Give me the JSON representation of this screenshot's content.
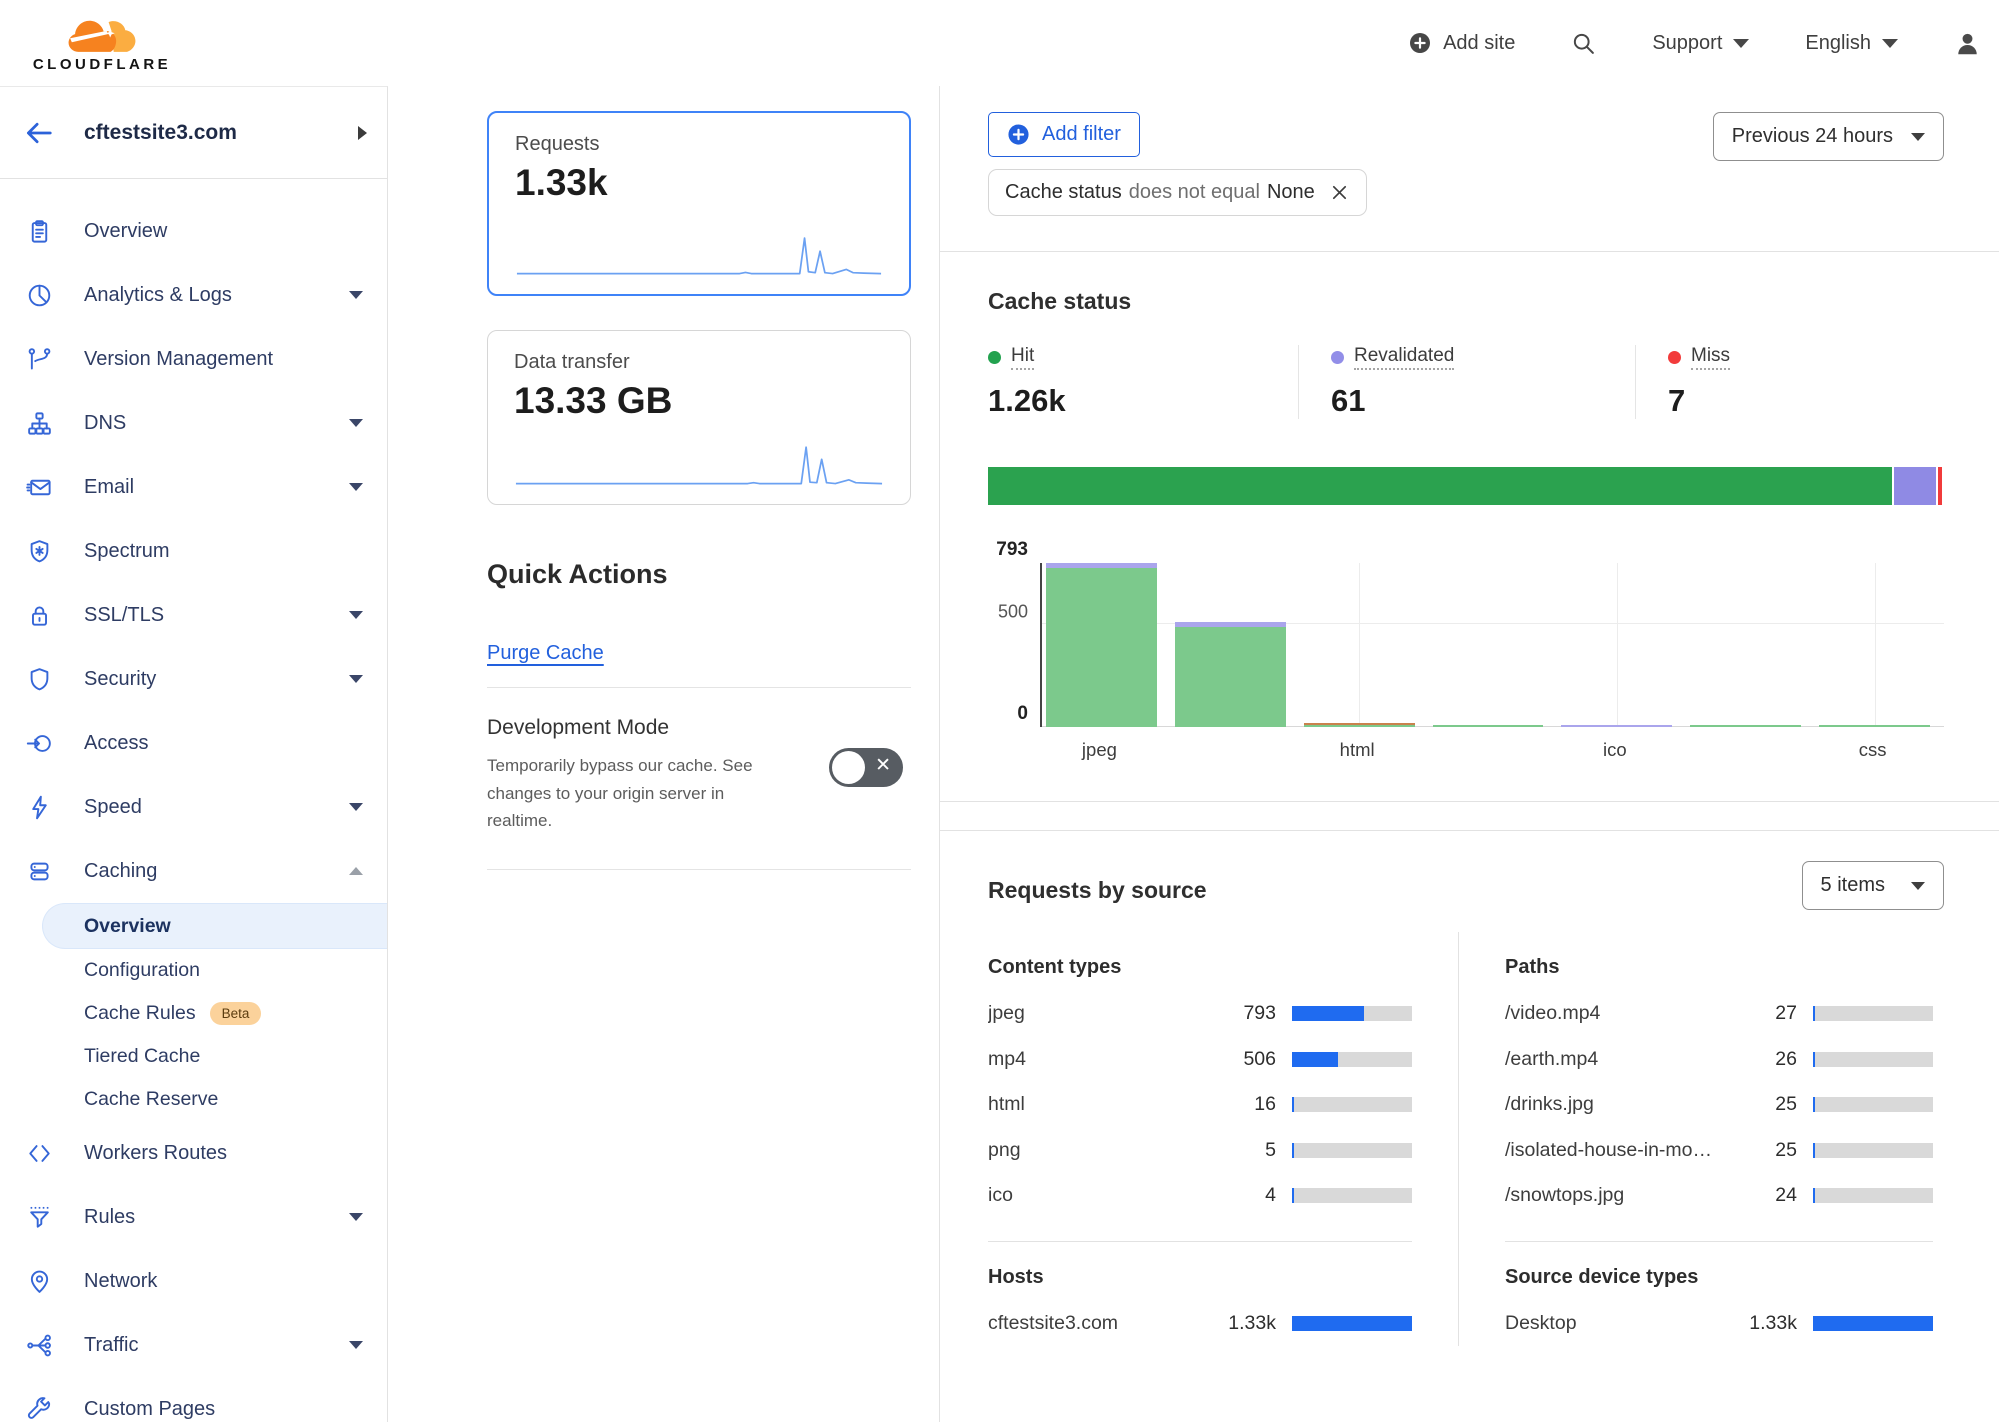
{
  "header": {
    "logo_text": "CLOUDFLARE",
    "add_site_label": "Add site",
    "support_label": "Support",
    "language_label": "English"
  },
  "sidebar": {
    "site_name": "cftestsite3.com",
    "items": [
      {
        "label": "Overview",
        "icon": "clipboard"
      },
      {
        "label": "Analytics & Logs",
        "icon": "pie",
        "caret": true
      },
      {
        "label": "Version Management",
        "icon": "branch"
      },
      {
        "label": "DNS",
        "icon": "tree",
        "caret": true
      },
      {
        "label": "Email",
        "icon": "envelope",
        "caret": true
      },
      {
        "label": "Spectrum",
        "icon": "shield-burst"
      },
      {
        "label": "SSL/TLS",
        "icon": "lock",
        "caret": true
      },
      {
        "label": "Security",
        "icon": "shield",
        "caret": true
      },
      {
        "label": "Access",
        "icon": "access"
      },
      {
        "label": "Speed",
        "icon": "bolt",
        "caret": true
      },
      {
        "label": "Caching",
        "icon": "layers",
        "expanded": true,
        "children": [
          {
            "label": "Overview",
            "selected": true
          },
          {
            "label": "Configuration"
          },
          {
            "label": "Cache Rules",
            "badge": "Beta"
          },
          {
            "label": "Tiered Cache"
          },
          {
            "label": "Cache Reserve"
          }
        ]
      },
      {
        "label": "Workers Routes",
        "icon": "code"
      },
      {
        "label": "Rules",
        "icon": "funnel",
        "caret": true
      },
      {
        "label": "Network",
        "icon": "pin"
      },
      {
        "label": "Traffic",
        "icon": "share",
        "caret": true
      },
      {
        "label": "Custom Pages",
        "icon": "wrench"
      }
    ]
  },
  "metrics": {
    "requests": {
      "label": "Requests",
      "value": "1.33k"
    },
    "data_transfer": {
      "label": "Data transfer",
      "value": "13.33 GB"
    }
  },
  "quick_actions": {
    "title": "Quick Actions",
    "purge_cache_label": "Purge Cache",
    "dev_mode": {
      "title": "Development Mode",
      "description": "Temporarily bypass our cache. See changes to your origin server in realtime.",
      "enabled": false
    }
  },
  "filters": {
    "add_filter_label": "Add filter",
    "chip": {
      "field": "Cache status",
      "operator": "does not equal",
      "value": "None"
    },
    "time_range_label": "Previous 24 hours"
  },
  "cache_status": {
    "title": "Cache status",
    "stats": [
      {
        "label": "Hit",
        "value": "1.26k",
        "color": "#23a24f"
      },
      {
        "label": "Revalidated",
        "value": "61",
        "color": "#928ee8"
      },
      {
        "label": "Miss",
        "value": "7",
        "color": "#f23b3b"
      }
    ]
  },
  "requests_by_source": {
    "title": "Requests by source",
    "items_dropdown_label": "5 items",
    "total": 1330,
    "groups": [
      {
        "title": "Content types",
        "rows": [
          {
            "label": "jpeg",
            "display": "793",
            "value": 793
          },
          {
            "label": "mp4",
            "display": "506",
            "value": 506
          },
          {
            "label": "html",
            "display": "16",
            "value": 16
          },
          {
            "label": "png",
            "display": "5",
            "value": 5
          },
          {
            "label": "ico",
            "display": "4",
            "value": 4
          }
        ]
      },
      {
        "title": "Paths",
        "rows": [
          {
            "label": "/video.mp4",
            "display": "27",
            "value": 27
          },
          {
            "label": "/earth.mp4",
            "display": "26",
            "value": 26
          },
          {
            "label": "/drinks.jpg",
            "display": "25",
            "value": 25
          },
          {
            "label": "/isolated-house-in-mo…",
            "display": "25",
            "value": 25
          },
          {
            "label": "/snowtops.jpg",
            "display": "24",
            "value": 24
          }
        ]
      },
      {
        "title": "Hosts",
        "rows": [
          {
            "label": "cftestsite3.com",
            "display": "1.33k",
            "value": 1330
          }
        ]
      },
      {
        "title": "Source device types",
        "rows": [
          {
            "label": "Desktop",
            "display": "1.33k",
            "value": 1330
          }
        ]
      }
    ]
  },
  "chart_data": [
    {
      "type": "bar",
      "variant": "stacked-horizontal-100pct",
      "title": "Cache status",
      "total": 1330,
      "segments": [
        {
          "name": "Hit",
          "value": 1260,
          "color": "#2ba24f"
        },
        {
          "name": "Revalidated",
          "value": 61,
          "color": "#8f8ae4"
        },
        {
          "name": "Miss",
          "value": 7,
          "color": "#f13b3b"
        }
      ]
    },
    {
      "type": "bar",
      "stacked": true,
      "categories": [
        "jpeg",
        "mp4",
        "html",
        "png",
        "ico",
        "",
        "css"
      ],
      "x_tick_labels": [
        {
          "label": "jpeg",
          "slot": 0
        },
        {
          "label": "html",
          "slot": 2
        },
        {
          "label": "ico",
          "slot": 4
        },
        {
          "label": "css",
          "slot": 6
        }
      ],
      "grid_slots": [
        2,
        4,
        6
      ],
      "y_ticks": [
        {
          "label": "793",
          "value": 793,
          "strong": true
        },
        {
          "label": "500",
          "value": 500
        },
        {
          "label": "0",
          "value": 0,
          "strong": true
        }
      ],
      "ylim": [
        0,
        793
      ],
      "grid": true,
      "series": [
        {
          "name": "Hit",
          "color": "#7cc98c",
          "values": [
            770,
            485,
            4,
            5,
            0,
            2,
            1
          ]
        },
        {
          "name": "Revalidated",
          "color": "#aaa5ec",
          "values": [
            23,
            21,
            0,
            0,
            4,
            0,
            0
          ]
        },
        {
          "name": "",
          "color": "#c9824d",
          "values": [
            0,
            0,
            12,
            0,
            0,
            0,
            0
          ]
        }
      ]
    }
  ]
}
